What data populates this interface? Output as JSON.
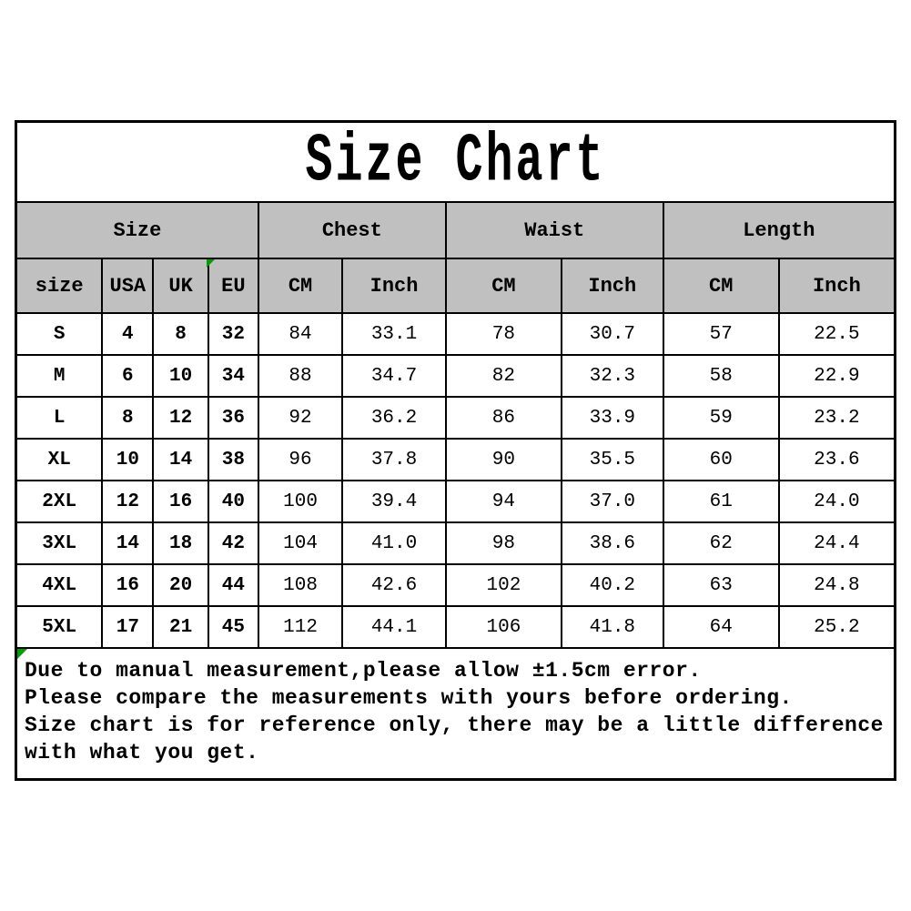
{
  "title": "Size Chart",
  "table": {
    "groups": [
      {
        "label": "Size",
        "span": 4
      },
      {
        "label": "Chest",
        "span": 2
      },
      {
        "label": "Waist",
        "span": 2
      },
      {
        "label": "Length",
        "span": 2
      }
    ],
    "columns": [
      "size",
      "USA",
      "UK",
      "EU",
      "CM",
      "Inch",
      "CM",
      "Inch",
      "CM",
      "Inch"
    ],
    "rows": [
      [
        "S",
        "4",
        "8",
        "32",
        "84",
        "33.1",
        "78",
        "30.7",
        "57",
        "22.5"
      ],
      [
        "M",
        "6",
        "10",
        "34",
        "88",
        "34.7",
        "82",
        "32.3",
        "58",
        "22.9"
      ],
      [
        "L",
        "8",
        "12",
        "36",
        "92",
        "36.2",
        "86",
        "33.9",
        "59",
        "23.2"
      ],
      [
        "XL",
        "10",
        "14",
        "38",
        "96",
        "37.8",
        "90",
        "35.5",
        "60",
        "23.6"
      ],
      [
        "2XL",
        "12",
        "16",
        "40",
        "100",
        "39.4",
        "94",
        "37.0",
        "61",
        "24.0"
      ],
      [
        "3XL",
        "14",
        "18",
        "42",
        "104",
        "41.0",
        "98",
        "38.6",
        "62",
        "24.4"
      ],
      [
        "4XL",
        "16",
        "20",
        "44",
        "108",
        "42.6",
        "102",
        "40.2",
        "63",
        "24.8"
      ],
      [
        "5XL",
        "17",
        "21",
        "45",
        "112",
        "44.1",
        "106",
        "41.8",
        "64",
        "25.2"
      ]
    ]
  },
  "notes": [
    "Due to manual measurement,please allow ±1.5cm error.",
    "Please compare the measurements with yours before ordering.",
    "Size chart is for reference only, there may be a little difference",
    "with what you get."
  ],
  "colors": {
    "header_bg": "#c0c0c0",
    "border": "#000000",
    "flag_green": "#00a000",
    "text": "#000000",
    "background": "#ffffff"
  }
}
